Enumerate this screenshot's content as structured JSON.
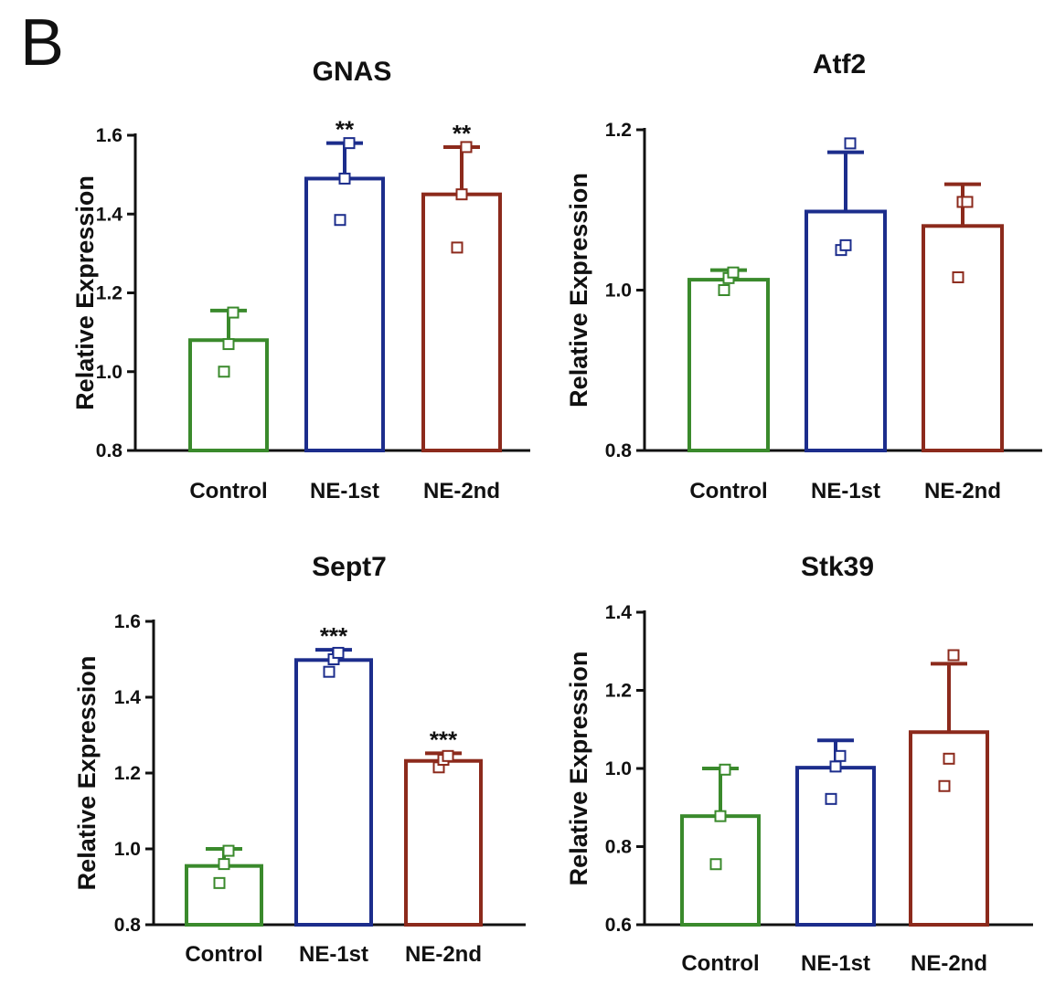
{
  "panel_label": "B",
  "chart_data": [
    {
      "type": "bar",
      "title": "GNAS",
      "ylabel": "Relative Expression",
      "categories": [
        "Control",
        "NE-1st",
        "NE-2nd"
      ],
      "ylim": [
        0.8,
        1.6
      ],
      "yticks": [
        "0.8",
        "1.0",
        "1.2",
        "1.4",
        "1.6"
      ],
      "values": [
        1.08,
        1.49,
        1.45
      ],
      "error_upper": [
        1.155,
        1.58,
        1.57
      ],
      "points": [
        [
          1.0,
          1.07,
          1.15
        ],
        [
          1.385,
          1.49,
          1.58
        ],
        [
          1.315,
          1.45,
          1.57
        ]
      ],
      "significance": [
        "",
        "**",
        "**"
      ],
      "colors": [
        "#3a8a2c",
        "#1c2d8c",
        "#8c2a1c"
      ]
    },
    {
      "type": "bar",
      "title": "Atf2",
      "ylabel": "Relative Expression",
      "categories": [
        "Control",
        "NE-1st",
        "NE-2nd"
      ],
      "ylim": [
        0.8,
        1.2
      ],
      "yticks": [
        "0.8",
        "1.0",
        "1.2"
      ],
      "values": [
        1.013,
        1.098,
        1.08
      ],
      "error_upper": [
        1.025,
        1.172,
        1.132
      ],
      "points": [
        [
          1.0,
          1.015,
          1.022
        ],
        [
          1.05,
          1.056,
          1.183
        ],
        [
          1.016,
          1.11,
          1.11
        ]
      ],
      "significance": [
        "",
        "",
        ""
      ],
      "colors": [
        "#3a8a2c",
        "#1c2d8c",
        "#8c2a1c"
      ]
    },
    {
      "type": "bar",
      "title": "Sept7",
      "ylabel": "Relative Expression",
      "categories": [
        "Control",
        "NE-1st",
        "NE-2nd"
      ],
      "ylim": [
        0.8,
        1.6
      ],
      "yticks": [
        "0.8",
        "1.0",
        "1.2",
        "1.4",
        "1.6"
      ],
      "values": [
        0.955,
        1.498,
        1.232
      ],
      "error_upper": [
        1.0,
        1.525,
        1.252
      ],
      "points": [
        [
          0.91,
          0.96,
          0.995
        ],
        [
          1.467,
          1.5,
          1.517
        ],
        [
          1.215,
          1.235,
          1.245
        ]
      ],
      "significance": [
        "",
        "***",
        "***"
      ],
      "colors": [
        "#3a8a2c",
        "#1c2d8c",
        "#8c2a1c"
      ]
    },
    {
      "type": "bar",
      "title": "Stk39",
      "ylabel": "Relative Expression",
      "categories": [
        "Control",
        "NE-1st",
        "NE-2nd"
      ],
      "ylim": [
        0.6,
        1.4
      ],
      "yticks": [
        "0.6",
        "0.8",
        "1.0",
        "1.2",
        "1.4"
      ],
      "values": [
        0.878,
        1.002,
        1.093
      ],
      "error_upper": [
        1.0,
        1.072,
        1.268
      ],
      "points": [
        [
          0.755,
          0.878,
          0.997
        ],
        [
          0.922,
          1.005,
          1.032
        ],
        [
          0.955,
          1.025,
          1.29
        ]
      ],
      "significance": [
        "",
        "",
        ""
      ],
      "colors": [
        "#3a8a2c",
        "#1c2d8c",
        "#8c2a1c"
      ]
    }
  ]
}
